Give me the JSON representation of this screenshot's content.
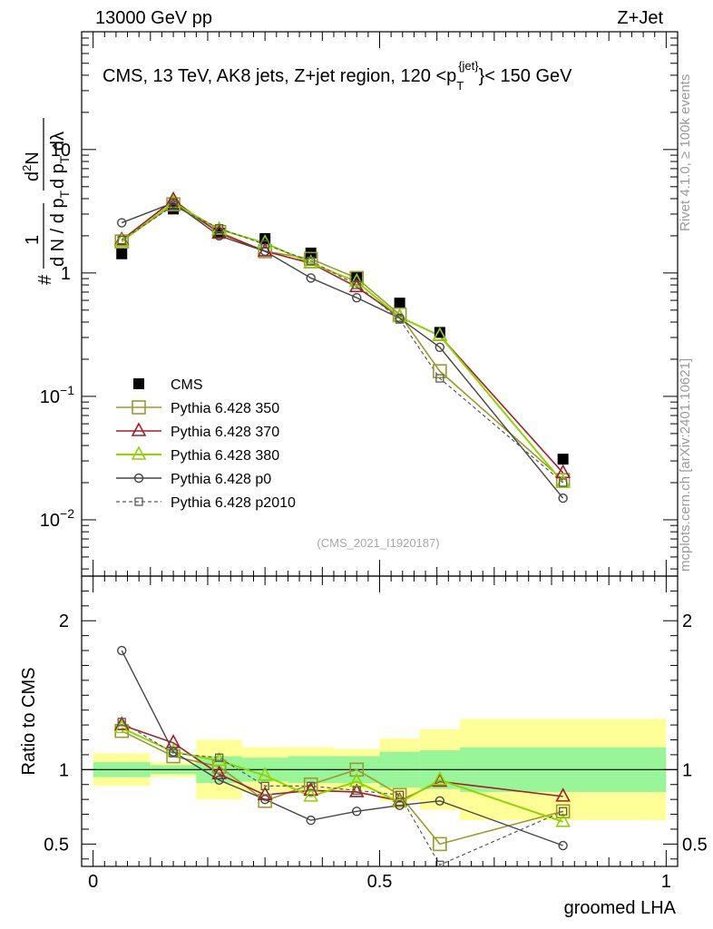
{
  "header": {
    "left": "13000 GeV pp",
    "right": "Z+Jet"
  },
  "side_labels": {
    "rivet": "Rivet 4.1.0, ≥ 100k events",
    "mcplots": "mcplots.cern.ch [arXiv:2401.10621]"
  },
  "reference": "(CMS_2021_I1920187)",
  "colors": {
    "data": "#000000",
    "p350": "#9b9b2a",
    "p370": "#a01e2b",
    "p380": "#8fd400",
    "p0": "#454545",
    "p2010": "#5a5a5a",
    "band_inner": "#98f598",
    "band_outer": "#ffff98"
  },
  "chart_data": [
    {
      "type": "line",
      "panel": "main",
      "title": "CMS, 13 TeV, AK8 jets, Z+jet region, 120 <p_T^{jet}< 150 GeV",
      "title_parts": {
        "prefix": "CMS, 13 TeV, AK8 jets, Z+jet region, 120 <p",
        "sub": "T",
        "sup": "{jet}",
        "suffix": "}< 150 GeV"
      },
      "ylabel": "1/(dN/dp_T) d²N/(dp_T dλ)",
      "yscale": "log",
      "ylim": [
        0.0035,
        90
      ],
      "xlim": [
        -0.02,
        1.02
      ],
      "y_ticks": [
        {
          "value": 0.01,
          "label": "10",
          "exp": "−2"
        },
        {
          "value": 0.1,
          "label": "10",
          "exp": "−1"
        },
        {
          "value": 1,
          "label": "1",
          "exp": ""
        },
        {
          "value": 10,
          "label": "10",
          "exp": ""
        }
      ],
      "x": [
        0.05,
        0.14,
        0.22,
        0.3,
        0.38,
        0.46,
        0.535,
        0.605,
        0.82
      ],
      "bins": [
        [
          0,
          0.1
        ],
        [
          0.1,
          0.18
        ],
        [
          0.18,
          0.26
        ],
        [
          0.26,
          0.34
        ],
        [
          0.34,
          0.42
        ],
        [
          0.42,
          0.5
        ],
        [
          0.5,
          0.57
        ],
        [
          0.57,
          0.64
        ],
        [
          0.64,
          1.0
        ]
      ],
      "series": [
        {
          "name": "CMS",
          "values": [
            1.43,
            3.3,
            2.1,
            1.9,
            1.45,
            0.93,
            0.57,
            0.33,
            0.031
          ]
        },
        {
          "name": "Pythia 6.428 350",
          "values": [
            1.8,
            3.6,
            2.15,
            1.5,
            1.3,
            0.91,
            0.46,
            0.16,
            0.021
          ]
        },
        {
          "name": "Pythia 6.428 370",
          "values": [
            1.85,
            3.9,
            2.1,
            1.5,
            1.2,
            0.77,
            0.44,
            0.31,
            0.024
          ]
        },
        {
          "name": "Pythia 6.428 380",
          "values": [
            1.8,
            3.7,
            2.25,
            1.75,
            1.2,
            0.85,
            0.44,
            0.31,
            0.02
          ]
        },
        {
          "name": "Pythia 6.428 p0",
          "values": [
            2.55,
            3.7,
            2.0,
            1.5,
            0.91,
            0.63,
            0.43,
            0.25,
            0.015
          ]
        },
        {
          "name": "Pythia 6.428 p2010",
          "values": [
            1.85,
            3.5,
            2.3,
            1.7,
            1.25,
            0.8,
            0.42,
            0.14,
            0.02
          ]
        }
      ]
    },
    {
      "type": "line",
      "panel": "ratio",
      "xlabel": "groomed LHA",
      "ylabel": "Ratio to CMS",
      "ylim": [
        0.35,
        2.3
      ],
      "xlim": [
        -0.02,
        1.02
      ],
      "x_ticks": [
        {
          "value": 0,
          "label": "0"
        },
        {
          "value": 0.5,
          "label": "0.5"
        },
        {
          "value": 1,
          "label": "1"
        }
      ],
      "y_ticks": [
        {
          "value": 0.5,
          "label": "0.5"
        },
        {
          "value": 1,
          "label": "1"
        },
        {
          "value": 2,
          "label": "2"
        }
      ],
      "band_inner": [
        [
          0.95,
          1.05
        ],
        [
          0.97,
          1.03
        ],
        [
          0.91,
          1.09
        ],
        [
          0.92,
          1.08
        ],
        [
          0.91,
          1.09
        ],
        [
          0.91,
          1.09
        ],
        [
          0.88,
          1.12
        ],
        [
          0.87,
          1.13
        ],
        [
          0.85,
          1.15
        ]
      ],
      "band_outer": [
        [
          0.89,
          1.11
        ],
        [
          0.95,
          1.05
        ],
        [
          0.8,
          1.2
        ],
        [
          0.85,
          1.15
        ],
        [
          0.85,
          1.15
        ],
        [
          0.86,
          1.14
        ],
        [
          0.79,
          1.21
        ],
        [
          0.73,
          1.27
        ],
        [
          0.66,
          1.34
        ]
      ],
      "series": [
        {
          "name": "Pythia 6.428 350",
          "values": [
            1.26,
            1.09,
            1.02,
            0.79,
            0.9,
            1.0,
            0.83,
            0.5,
            0.72
          ]
        },
        {
          "name": "Pythia 6.428 370",
          "values": [
            1.3,
            1.18,
            0.97,
            0.83,
            0.86,
            0.85,
            0.79,
            0.92,
            0.82
          ]
        },
        {
          "name": "Pythia 6.428 380",
          "values": [
            1.28,
            1.12,
            1.06,
            0.96,
            0.82,
            0.92,
            0.78,
            0.93,
            0.65
          ]
        },
        {
          "name": "Pythia 6.428 p0",
          "values": [
            1.8,
            1.12,
            0.93,
            0.8,
            0.66,
            0.72,
            0.76,
            0.79,
            0.49
          ]
        },
        {
          "name": "Pythia 6.428 p2010",
          "values": [
            1.32,
            1.11,
            1.08,
            0.89,
            0.89,
            0.86,
            0.83,
            0.36,
            0.72
          ]
        }
      ]
    }
  ]
}
